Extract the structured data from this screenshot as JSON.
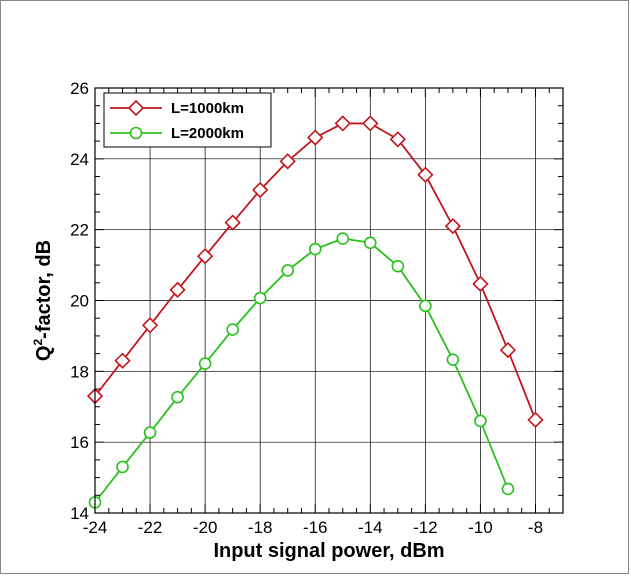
{
  "chart_data": {
    "type": "line",
    "xlabel": "Input signal power, dBm",
    "ylabel_main": "Q",
    "ylabel_sup": "2",
    "ylabel_rest": "-factor, dB",
    "xlim": [
      -24,
      -7
    ],
    "ylim": [
      14,
      26
    ],
    "xticks": [
      -24,
      -22,
      -20,
      -18,
      -16,
      -14,
      -12,
      -10,
      -8
    ],
    "yticks": [
      14,
      16,
      18,
      20,
      22,
      24,
      26
    ],
    "grid": true,
    "legend_position": "top-left",
    "series": [
      {
        "name": "L=1000km",
        "color": "#c0161c",
        "marker": "diamond",
        "x": [
          -24,
          -23,
          -22,
          -21,
          -20,
          -19,
          -18,
          -17,
          -16,
          -15,
          -14,
          -13,
          -12,
          -11,
          -10,
          -9,
          -8
        ],
        "y": [
          17.3,
          18.3,
          19.3,
          20.3,
          21.25,
          22.2,
          23.12,
          23.93,
          24.6,
          25.0,
          25.0,
          24.55,
          23.55,
          22.1,
          20.47,
          18.6,
          16.63
        ]
      },
      {
        "name": "L=2000km",
        "color": "#27c21a",
        "marker": "circle",
        "x": [
          -24,
          -23,
          -22,
          -21,
          -20,
          -19,
          -18,
          -17,
          -16,
          -15,
          -14,
          -13,
          -12,
          -11,
          -10,
          -9
        ],
        "y": [
          14.3,
          15.3,
          16.27,
          17.27,
          18.22,
          19.18,
          20.07,
          20.85,
          21.45,
          21.75,
          21.63,
          20.97,
          19.85,
          18.33,
          16.6,
          14.68
        ]
      }
    ]
  }
}
